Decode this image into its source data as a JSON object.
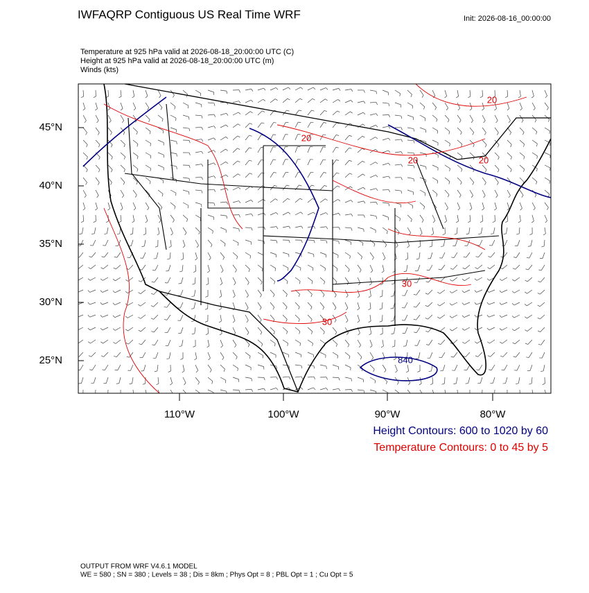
{
  "header": {
    "title": "IWFAQRP Contiguous US Real Time WRF",
    "init": "Init: 2026-08-16_00:00:00"
  },
  "fields": [
    "Temperature at 925 hPa valid at 2026-08-18_20:00:00 UTC   (C)",
    "Height at 925 hPa valid at 2026-08-18_20:00:00 UTC   (m)",
    "Winds   (kts)"
  ],
  "map": {
    "lat_labels": [
      "45°N",
      "40°N",
      "35°N",
      "30°N",
      "25°N"
    ],
    "lon_labels": [
      "110°W",
      "100°W",
      "90°W",
      "80°W"
    ],
    "contour_labels": [
      "20",
      "20",
      "20",
      "20",
      "30",
      "30",
      "840"
    ]
  },
  "legend": [
    "Height Contours: 600 to 1020 by 60",
    "Temperature Contours: 0 to 45 by 5"
  ],
  "footer": [
    "OUTPUT FROM WRF V4.6.1 MODEL",
    "WE = 580 ; SN = 380 ; Levels = 38 ; Dis = 8km ; Phys Opt = 8 ; PBL Opt = 1 ; Cu Opt = 5"
  ]
}
